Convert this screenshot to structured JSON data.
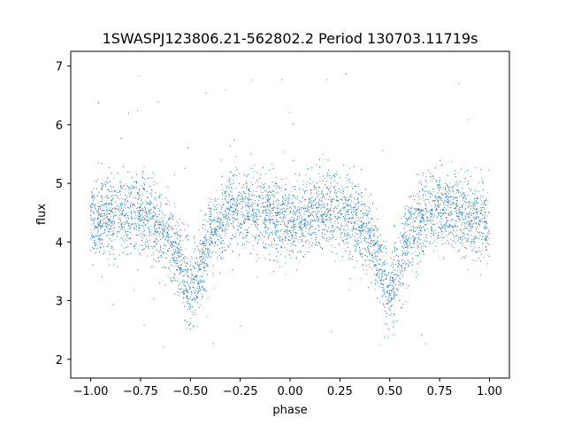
{
  "chart_data": {
    "type": "scatter",
    "title": "1SWASPJ123806.21-562802.2 Period 130703.11719s",
    "xlabel": "phase",
    "ylabel": "flux",
    "xlim": [
      -1.1,
      1.1
    ],
    "ylim": [
      1.68,
      7.25
    ],
    "xticks": [
      -1.0,
      -0.75,
      -0.5,
      -0.25,
      0.0,
      0.25,
      0.5,
      0.75,
      1.0
    ],
    "xtick_labels": [
      "−1.00",
      "−0.75",
      "−0.50",
      "−0.25",
      "0.00",
      "0.25",
      "0.50",
      "0.75",
      "1.00"
    ],
    "yticks": [
      2,
      3,
      4,
      5,
      6,
      7
    ],
    "ytick_labels": [
      "2",
      "3",
      "4",
      "5",
      "6",
      "7"
    ],
    "grid": false,
    "point_color": "#1f77b4",
    "series": [
      {
        "phase_range": [
          -1.0,
          1.0
        ],
        "mean_flux_profile": {
          "phase": [
            -1.0,
            -0.9,
            -0.8,
            -0.7,
            -0.6,
            -0.55,
            -0.5,
            -0.45,
            -0.4,
            -0.3,
            -0.2,
            -0.1,
            0.0,
            0.1,
            0.2,
            0.3,
            0.4,
            0.45,
            0.5,
            0.55,
            0.6,
            0.7,
            0.8,
            0.9,
            1.0
          ],
          "flux": [
            4.35,
            4.45,
            4.5,
            4.45,
            4.05,
            3.65,
            3.05,
            3.6,
            4.15,
            4.55,
            4.55,
            4.45,
            4.3,
            4.45,
            4.55,
            4.5,
            4.05,
            3.6,
            3.05,
            3.55,
            4.15,
            4.55,
            4.55,
            4.45,
            4.3
          ]
        },
        "scatter_sigma": 0.33,
        "outlier_flux_range": [
          1.9,
          6.9
        ]
      }
    ]
  }
}
